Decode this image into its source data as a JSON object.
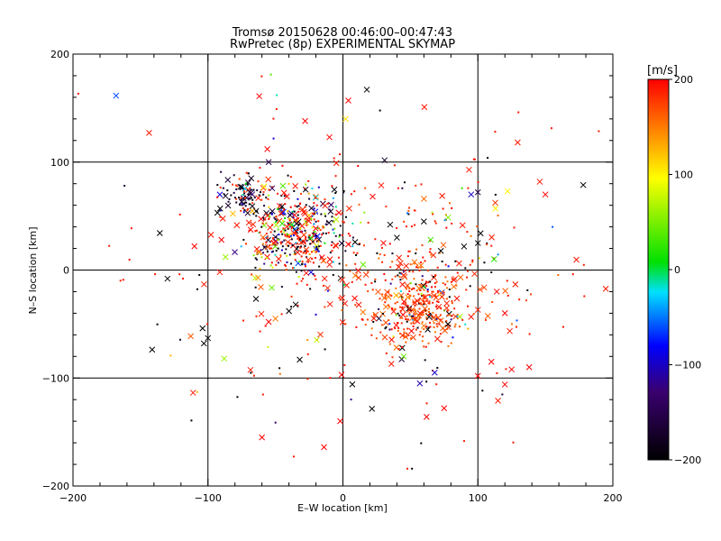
{
  "chart_data": {
    "type": "scatter",
    "title": "Tromsø 20150628 00:46:00–00:47:43",
    "subtitle": "RwPretec (8p) EXPERIMENTAL SKYMAP",
    "xlabel": "E–W location [km]",
    "ylabel": "N–S location [km]",
    "xlim": [
      -200,
      200
    ],
    "ylim": [
      -200,
      200
    ],
    "x_ticks": [
      -200,
      -100,
      0,
      100,
      200
    ],
    "y_ticks": [
      -200,
      -100,
      0,
      100,
      200
    ],
    "x_tick_labels": [
      "−200",
      "−100",
      "0",
      "100",
      "200"
    ],
    "y_tick_labels": [
      "−200",
      "−100",
      "0",
      "100",
      "200"
    ],
    "grid": true,
    "grid_lines": [
      -100,
      0,
      100
    ],
    "colorbar": {
      "label": "[m/s]",
      "range": [
        -200,
        200
      ],
      "ticks": [
        200,
        100,
        0,
        -100,
        -200
      ],
      "tick_labels": [
        "200",
        "100",
        "0",
        "−100",
        "−200"
      ],
      "colormap": [
        "#000000",
        "#3a0070",
        "#0000ff",
        "#00e0ff",
        "#00e000",
        "#ffff00",
        "#ff0000"
      ]
    },
    "marker_legend": {
      "cross": "x marks",
      "dot": "small dots"
    },
    "clusters": [
      {
        "cx": -35,
        "cy": 35,
        "sx": 18,
        "sy": 20,
        "n": 420,
        "color_mix": "mixed"
      },
      {
        "cx": -75,
        "cy": 70,
        "sx": 10,
        "sy": 8,
        "n": 90,
        "color_mix": "dark"
      },
      {
        "cx": 55,
        "cy": -35,
        "sx": 14,
        "sy": 16,
        "n": 260,
        "color_mix": "red"
      },
      {
        "cx": 50,
        "cy": 0,
        "sx": 40,
        "sy": 40,
        "n": 220,
        "color_mix": "red"
      },
      {
        "cx": 0,
        "cy": 0,
        "sx": 90,
        "sy": 80,
        "n": 220,
        "color_mix": "sparse"
      }
    ],
    "points": [
      {
        "x": -130,
        "y": -8,
        "v": -200,
        "m": "x"
      },
      {
        "x": -103,
        "y": -68,
        "v": -200,
        "m": "x"
      },
      {
        "x": -100,
        "y": -63,
        "v": -200,
        "m": "x"
      },
      {
        "x": -104,
        "y": -54,
        "v": -200,
        "m": "x"
      },
      {
        "x": -110,
        "y": 22,
        "v": 200,
        "m": "x"
      },
      {
        "x": -93,
        "y": 53,
        "v": -200,
        "m": "x"
      },
      {
        "x": -91,
        "y": 57,
        "v": -200,
        "m": "x"
      },
      {
        "x": -90,
        "y": 28,
        "v": 200,
        "m": "x"
      },
      {
        "x": -88,
        "y": -82,
        "v": 60,
        "m": "x"
      },
      {
        "x": -87,
        "y": 12,
        "v": 60,
        "m": "x"
      },
      {
        "x": -62,
        "y": 161,
        "v": 200,
        "m": "x"
      },
      {
        "x": -56,
        "y": 112,
        "v": 200,
        "m": "x"
      },
      {
        "x": -28,
        "y": 138,
        "v": 200,
        "m": "x"
      },
      {
        "x": -10,
        "y": 123,
        "v": 200,
        "m": "x"
      },
      {
        "x": 4,
        "y": 157,
        "v": 200,
        "m": "x"
      },
      {
        "x": 2,
        "y": 140,
        "v": 110,
        "m": "x"
      },
      {
        "x": -55,
        "y": 100,
        "v": -150,
        "m": "x"
      },
      {
        "x": -60,
        "y": -155,
        "v": 200,
        "m": "x"
      },
      {
        "x": -14,
        "y": -164,
        "v": 200,
        "m": "x"
      },
      {
        "x": -2,
        "y": -140,
        "v": 200,
        "m": "x"
      },
      {
        "x": -1,
        "y": -97,
        "v": 200,
        "m": "x"
      },
      {
        "x": -32,
        "y": -83,
        "v": -200,
        "m": "x"
      },
      {
        "x": 62,
        "y": -136,
        "v": 200,
        "m": "x"
      },
      {
        "x": 75,
        "y": -128,
        "v": 200,
        "m": "x"
      },
      {
        "x": 150,
        "y": 70,
        "v": 200,
        "m": "x"
      },
      {
        "x": 122,
        "y": 73,
        "v": 100,
        "m": "x"
      },
      {
        "x": 125,
        "y": -92,
        "v": 200,
        "m": "x"
      },
      {
        "x": 138,
        "y": -90,
        "v": 200,
        "m": "x"
      },
      {
        "x": 110,
        "y": -85,
        "v": 200,
        "m": "x"
      },
      {
        "x": 120,
        "y": -106,
        "v": 200,
        "m": "x"
      },
      {
        "x": 100,
        "y": -98,
        "v": 200,
        "m": "x"
      },
      {
        "x": 95,
        "y": 70,
        "v": -100,
        "m": "x"
      },
      {
        "x": 100,
        "y": 72,
        "v": -150,
        "m": "x"
      },
      {
        "x": 113,
        "y": 57,
        "v": 100,
        "m": "x"
      },
      {
        "x": 112,
        "y": 10,
        "v": 20,
        "m": "x"
      },
      {
        "x": 114,
        "y": -20,
        "v": 200,
        "m": "x"
      },
      {
        "x": 120,
        "y": -40,
        "v": 200,
        "m": "x"
      },
      {
        "x": 102,
        "y": 34,
        "v": -200,
        "m": "x"
      },
      {
        "x": 100,
        "y": 25,
        "v": -200,
        "m": "x"
      },
      {
        "x": 65,
        "y": 28,
        "v": 30,
        "m": "x"
      },
      {
        "x": 60,
        "y": 45,
        "v": -200,
        "m": "x"
      },
      {
        "x": 35,
        "y": 42,
        "v": -200,
        "m": "x"
      },
      {
        "x": 40,
        "y": 30,
        "v": -200,
        "m": "x"
      },
      {
        "x": 30,
        "y": 25,
        "v": 200,
        "m": "x"
      },
      {
        "x": 22,
        "y": 68,
        "v": 200,
        "m": "x"
      },
      {
        "x": 15,
        "y": 5,
        "v": 40,
        "m": "x"
      },
      {
        "x": 45,
        "y": -80,
        "v": 40,
        "m": "x"
      },
      {
        "x": 68,
        "y": -95,
        "v": -100,
        "m": "x"
      },
      {
        "x": 57,
        "y": -105,
        "v": -110,
        "m": "x"
      },
      {
        "x": -40,
        "y": -38,
        "v": -200,
        "m": "x"
      },
      {
        "x": -35,
        "y": -32,
        "v": -200,
        "m": "x"
      },
      {
        "x": -55,
        "y": -48,
        "v": 200,
        "m": "x"
      },
      {
        "x": -50,
        "y": -45,
        "v": 150,
        "m": "x"
      },
      {
        "x": -45,
        "y": 43,
        "v": 20,
        "m": "x"
      },
      {
        "x": -38,
        "y": 42,
        "v": 10,
        "m": "x"
      }
    ]
  }
}
